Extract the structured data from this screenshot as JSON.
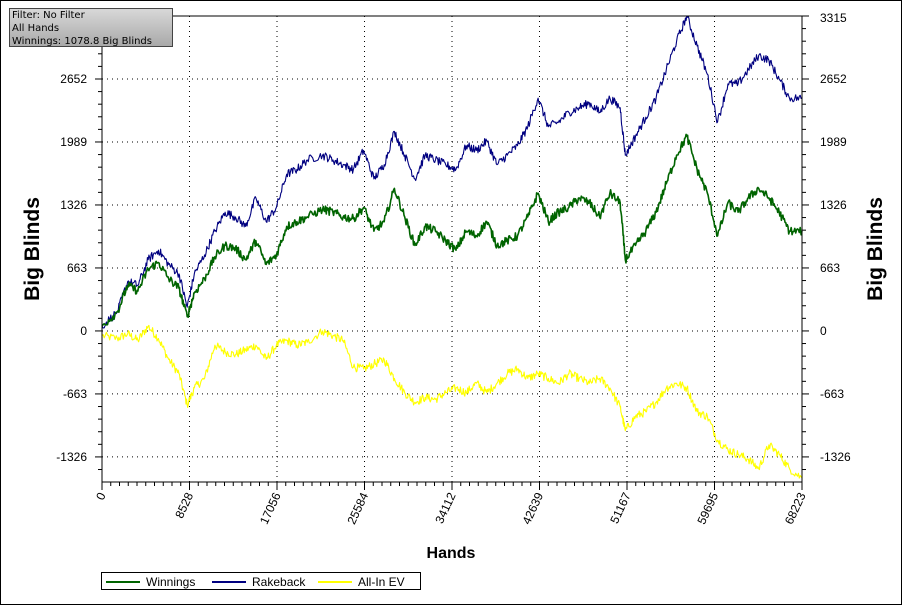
{
  "info_box": {
    "line1": "Filter: No Filter",
    "line2": "All Hands",
    "line3": "Winnings: 1078.8 Big Blinds"
  },
  "chart_data": {
    "type": "line",
    "xlabel": "Hands",
    "ylabel_left": "Big Blinds",
    "ylabel_right": "Big Blinds",
    "xlim": [
      0,
      68223
    ],
    "ylim": [
      -1590,
      3315
    ],
    "x_ticks": [
      "0",
      "8528",
      "17056",
      "25584",
      "34112",
      "42639",
      "51167",
      "59695",
      "68223"
    ],
    "x_tick_values": [
      0,
      8528,
      17056,
      25584,
      34112,
      42639,
      51167,
      59695,
      68223
    ],
    "y_ticks_left": [
      "-1326",
      "-663",
      "0",
      "663",
      "1326",
      "1989",
      "2652"
    ],
    "y_ticks_right": [
      "-1326",
      "-663",
      "0",
      "663",
      "1326",
      "1989",
      "2652",
      "3315"
    ],
    "y_tick_values": [
      -1326,
      -663,
      0,
      663,
      1326,
      1989,
      2652,
      3315
    ],
    "grid": true,
    "legend_position": "bottom-left",
    "series": [
      {
        "name": "Winnings",
        "color": "#006400",
        "x": [
          0,
          1500,
          2500,
          3500,
          4500,
          5500,
          6500,
          7500,
          8300,
          9000,
          10000,
          11000,
          12000,
          13000,
          14000,
          15000,
          16000,
          17000,
          18000,
          19000,
          20000,
          21500,
          22500,
          23500,
          24500,
          25500,
          26500,
          27500,
          28500,
          29500,
          30500,
          31500,
          32500,
          33500,
          34500,
          35500,
          36500,
          37500,
          38500,
          39500,
          40500,
          41500,
          42500,
          43500,
          44500,
          45500,
          46500,
          47500,
          48500,
          49500,
          50500,
          51000,
          52000,
          53000,
          54000,
          55000,
          56000,
          57000,
          58000,
          59000,
          60000,
          61000,
          62000,
          63000,
          64000,
          65000,
          66000,
          67000,
          68223
        ],
        "y": [
          50,
          200,
          480,
          420,
          650,
          720,
          550,
          450,
          150,
          400,
          550,
          780,
          900,
          870,
          750,
          950,
          700,
          800,
          1100,
          1150,
          1200,
          1280,
          1250,
          1200,
          1180,
          1300,
          1050,
          1150,
          1500,
          1200,
          900,
          1100,
          1050,
          950,
          850,
          1050,
          1000,
          1150,
          900,
          950,
          1000,
          1200,
          1450,
          1150,
          1250,
          1300,
          1400,
          1350,
          1200,
          1450,
          1350,
          750,
          900,
          1050,
          1250,
          1550,
          1850,
          2050,
          1700,
          1450,
          1000,
          1350,
          1250,
          1400,
          1500,
          1400,
          1250,
          1050,
          1050
        ]
      },
      {
        "name": "Rakeback",
        "color": "#000080",
        "x": [
          0,
          1500,
          2500,
          3500,
          4500,
          5500,
          6500,
          7500,
          8300,
          9000,
          10000,
          11000,
          12000,
          13000,
          14000,
          15000,
          16000,
          17000,
          18000,
          19000,
          20000,
          21500,
          22500,
          23500,
          24500,
          25500,
          26500,
          27500,
          28500,
          29500,
          30500,
          31500,
          32500,
          33500,
          34500,
          35500,
          36500,
          37500,
          38500,
          39500,
          40500,
          41500,
          42500,
          43500,
          44500,
          45500,
          46500,
          47500,
          48500,
          49500,
          50500,
          51000,
          52000,
          53000,
          54000,
          55000,
          56000,
          57000,
          58000,
          59000,
          60000,
          61000,
          62000,
          63000,
          64000,
          65000,
          66000,
          67000,
          68223
        ],
        "y": [
          50,
          200,
          520,
          480,
          750,
          850,
          700,
          600,
          250,
          600,
          800,
          1050,
          1250,
          1200,
          1100,
          1400,
          1150,
          1300,
          1650,
          1700,
          1800,
          1850,
          1800,
          1750,
          1700,
          1900,
          1600,
          1750,
          2100,
          1850,
          1600,
          1850,
          1800,
          1750,
          1700,
          1950,
          1900,
          2000,
          1750,
          1850,
          1950,
          2150,
          2450,
          2150,
          2200,
          2300,
          2350,
          2400,
          2300,
          2450,
          2350,
          1850,
          2050,
          2250,
          2450,
          2750,
          3050,
          3315,
          3000,
          2700,
          2200,
          2600,
          2600,
          2750,
          2900,
          2850,
          2650,
          2450,
          2450
        ]
      },
      {
        "name": "All-In EV",
        "color": "#FFFF00",
        "x": [
          0,
          1500,
          2500,
          3500,
          4500,
          5500,
          6500,
          7500,
          8300,
          9000,
          10000,
          11000,
          12000,
          13000,
          14000,
          15000,
          16000,
          17000,
          18000,
          19000,
          20000,
          21500,
          22500,
          23500,
          24500,
          25500,
          26500,
          27500,
          28500,
          29500,
          30500,
          31500,
          32500,
          33500,
          34500,
          35500,
          36500,
          37500,
          38500,
          39500,
          40500,
          41500,
          42500,
          43500,
          44500,
          45500,
          46500,
          47500,
          48500,
          49500,
          50500,
          51000,
          52000,
          53000,
          54000,
          55000,
          56000,
          57000,
          58000,
          59000,
          60000,
          61000,
          62000,
          63000,
          64000,
          65000,
          66000,
          67000,
          68223
        ],
        "y": [
          -50,
          -80,
          -30,
          -100,
          50,
          -80,
          -300,
          -450,
          -780,
          -600,
          -500,
          -150,
          -220,
          -250,
          -200,
          -150,
          -300,
          -150,
          -100,
          -150,
          -120,
          0,
          -50,
          -100,
          -380,
          -400,
          -350,
          -300,
          -500,
          -650,
          -750,
          -700,
          -720,
          -650,
          -600,
          -650,
          -550,
          -650,
          -550,
          -450,
          -400,
          -500,
          -450,
          -500,
          -550,
          -450,
          -500,
          -550,
          -500,
          -600,
          -800,
          -1050,
          -900,
          -850,
          -750,
          -600,
          -550,
          -600,
          -850,
          -900,
          -1150,
          -1250,
          -1300,
          -1350,
          -1450,
          -1200,
          -1300,
          -1450,
          -1550
        ]
      }
    ]
  }
}
